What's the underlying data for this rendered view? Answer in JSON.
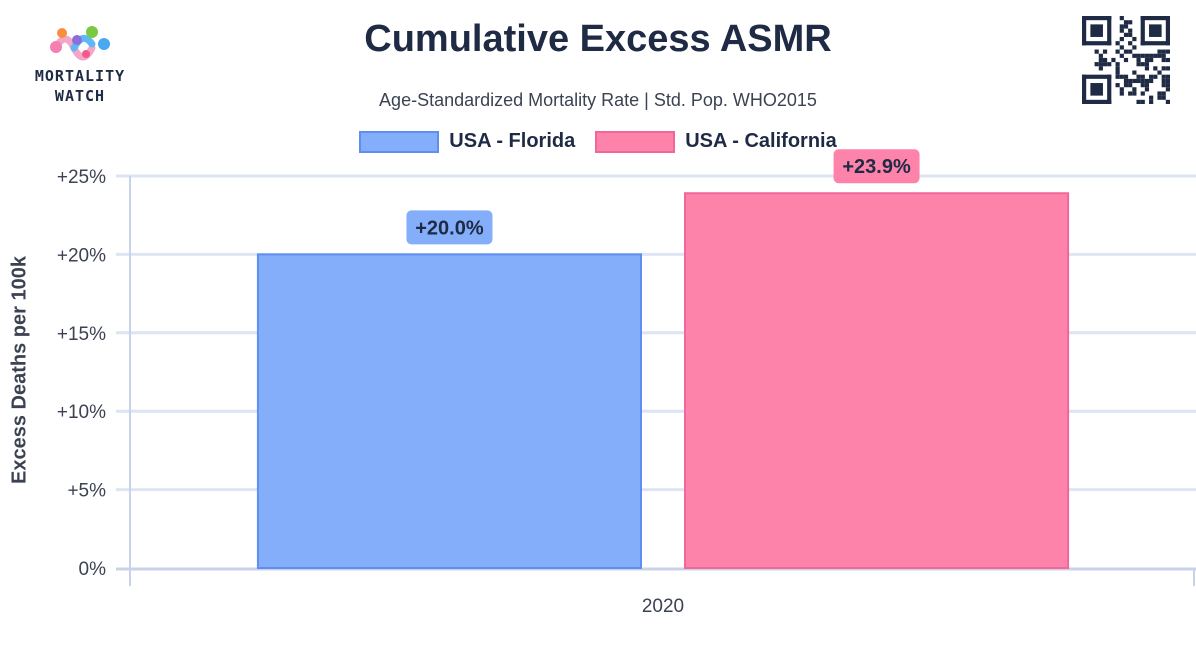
{
  "brand": {
    "logo_line1": "MORTALITY",
    "logo_line2": "WATCH"
  },
  "chart_data": {
    "type": "bar",
    "title": "Cumulative Excess ASMR",
    "subtitle": "Age-Standardized Mortality Rate | Std. Pop. WHO2015",
    "ylabel": "Excess Deaths per 100k",
    "xlabel": "",
    "categories": [
      "2020"
    ],
    "ylim": [
      0,
      25
    ],
    "yticks": [
      "0%",
      "+5%",
      "+10%",
      "+15%",
      "+20%",
      "+25%"
    ],
    "ytick_values": [
      0,
      5,
      10,
      15,
      20,
      25
    ],
    "grid": true,
    "legend_position": "top-center",
    "series": [
      {
        "name": "USA - Florida",
        "values": [
          20.0
        ],
        "labels": [
          "+20.0%"
        ],
        "color": "#84aefa",
        "border": "#5f8ef0"
      },
      {
        "name": "USA - California",
        "values": [
          23.9
        ],
        "labels": [
          "+23.9%"
        ],
        "color": "#fe83ab",
        "border": "#f0679a"
      }
    ]
  }
}
